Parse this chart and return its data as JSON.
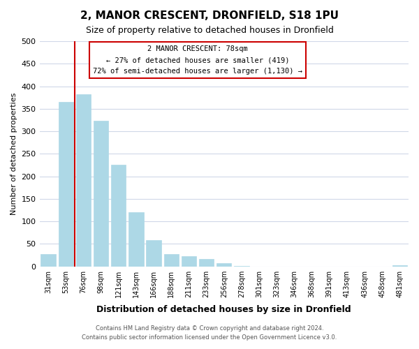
{
  "title": "2, MANOR CRESCENT, DRONFIELD, S18 1PU",
  "subtitle": "Size of property relative to detached houses in Dronfield",
  "xlabel": "Distribution of detached houses by size in Dronfield",
  "ylabel": "Number of detached properties",
  "bar_labels": [
    "31sqm",
    "53sqm",
    "76sqm",
    "98sqm",
    "121sqm",
    "143sqm",
    "166sqm",
    "188sqm",
    "211sqm",
    "233sqm",
    "256sqm",
    "278sqm",
    "301sqm",
    "323sqm",
    "346sqm",
    "368sqm",
    "391sqm",
    "413sqm",
    "436sqm",
    "458sqm",
    "481sqm"
  ],
  "bar_values": [
    28,
    365,
    383,
    323,
    226,
    120,
    58,
    28,
    23,
    17,
    7,
    1,
    0,
    0,
    0,
    0,
    0,
    0,
    0,
    0,
    3
  ],
  "bar_color": "#add8e6",
  "vline_color": "#cc0000",
  "annotation_title": "2 MANOR CRESCENT: 78sqm",
  "annotation_line1": "← 27% of detached houses are smaller (419)",
  "annotation_line2": "72% of semi-detached houses are larger (1,130) →",
  "annotation_box_color": "#ffffff",
  "annotation_box_edge": "#cc0000",
  "ylim": [
    0,
    500
  ],
  "yticks": [
    0,
    50,
    100,
    150,
    200,
    250,
    300,
    350,
    400,
    450,
    500
  ],
  "footer_line1": "Contains HM Land Registry data © Crown copyright and database right 2024.",
  "footer_line2": "Contains public sector information licensed under the Open Government Licence v3.0.",
  "bg_color": "#ffffff",
  "grid_color": "#d0d8e8"
}
